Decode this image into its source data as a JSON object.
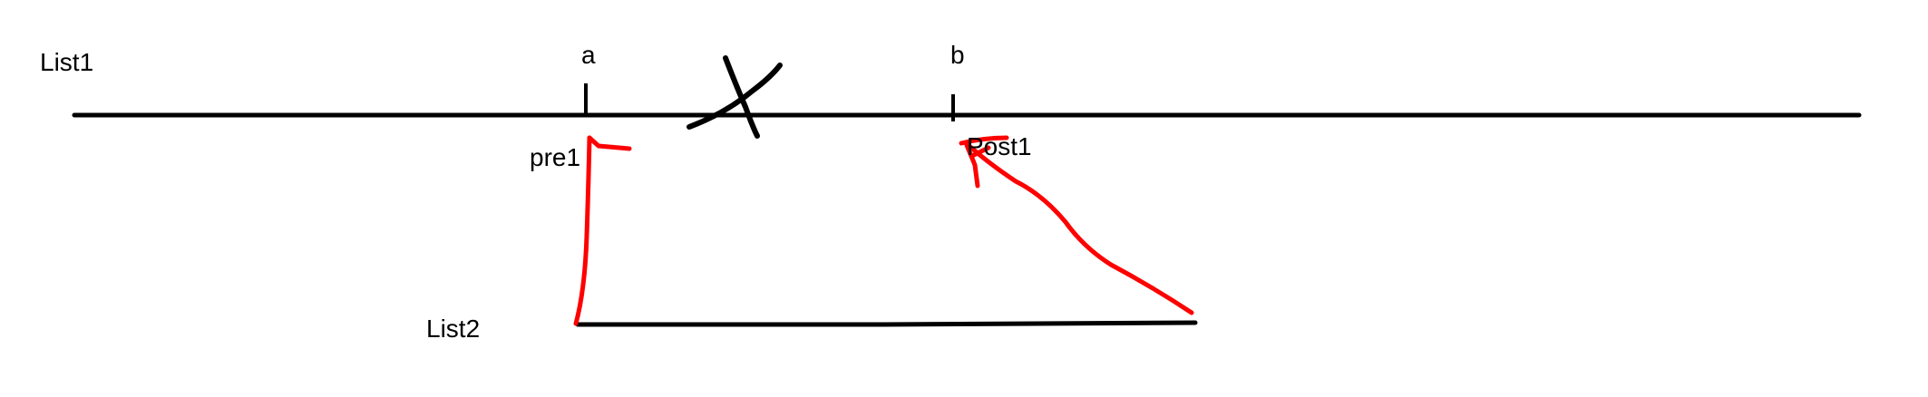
{
  "labels": {
    "list1": "List1",
    "list2": "List2",
    "a": "a",
    "b": "b",
    "pre1": "pre1",
    "post1": "Post1"
  },
  "colors": {
    "ink": "#000000",
    "annotation": "#ff0000",
    "background": "#ffffff"
  },
  "icons": {
    "cut_mark": "x-mark-icon"
  }
}
